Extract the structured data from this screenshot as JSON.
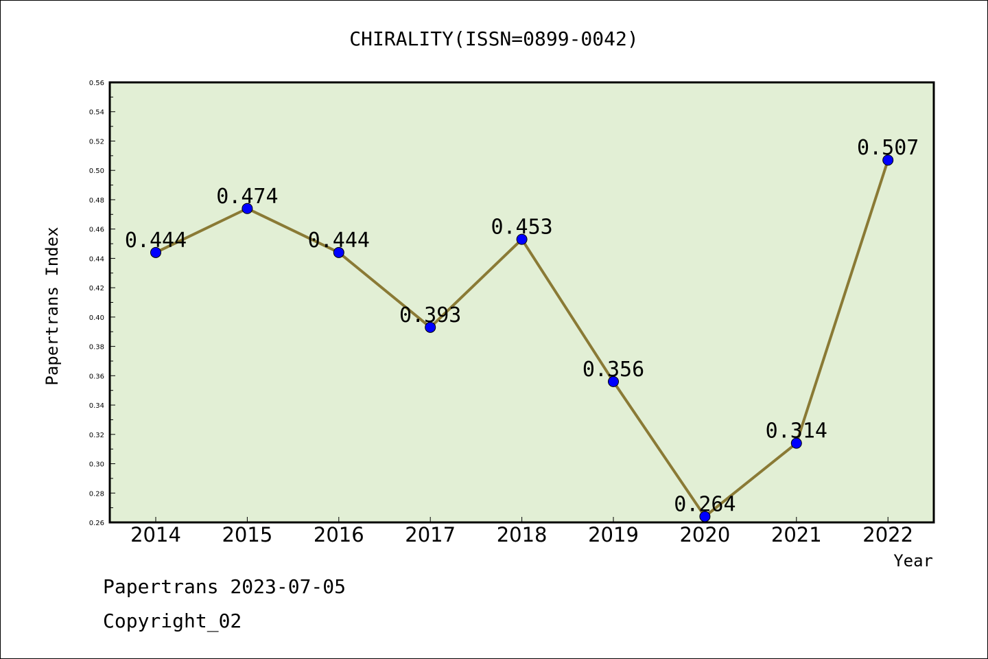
{
  "chart_data": {
    "type": "line",
    "title": "CHIRALITY(ISSN=0899-0042)",
    "xlabel": "Year",
    "ylabel": "Papertrans Index",
    "categories": [
      "2014",
      "2015",
      "2016",
      "2017",
      "2018",
      "2019",
      "2020",
      "2021",
      "2022"
    ],
    "series": [
      {
        "values": [
          0.444,
          0.474,
          0.444,
          0.393,
          0.453,
          0.356,
          0.264,
          0.314,
          0.507
        ],
        "data_labels": [
          "0.444",
          "0.474",
          "0.444",
          "0.393",
          "0.453",
          "0.356",
          "0.264",
          "0.314",
          "0.507"
        ]
      }
    ],
    "ylim": [
      0.26,
      0.56
    ],
    "yticks": [
      "0.26",
      "0.28",
      "0.30",
      "0.32",
      "0.34",
      "0.36",
      "0.38",
      "0.40",
      "0.42",
      "0.44",
      "0.46",
      "0.48",
      "0.50",
      "0.52",
      "0.54",
      "0.56"
    ],
    "grid": false,
    "colors": {
      "plot_background": "#e2efd5",
      "line": "#8a7a35",
      "marker": "#0000ff"
    }
  },
  "footer": {
    "line1": "Papertrans 2023-07-05",
    "line2": "Copyright_02"
  }
}
